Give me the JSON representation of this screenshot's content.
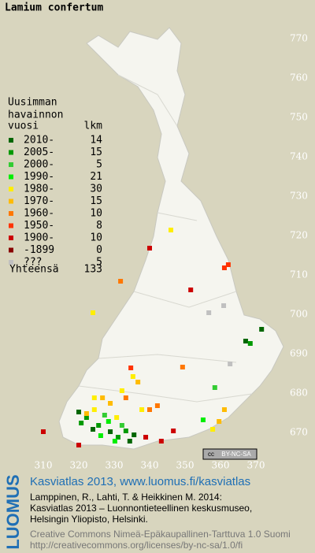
{
  "chart_data": {
    "type": "grid-map",
    "title": "Lamium confertum",
    "legend_heading": [
      "Uusimman",
      "havainnon",
      "vuosi"
    ],
    "count_heading": "lkm",
    "total_label": "Yhteensä",
    "total": 133,
    "xlim": [
      300,
      380
    ],
    "ylim": [
      660,
      780
    ],
    "xticks": [
      310,
      320,
      330,
      340,
      350,
      360,
      370
    ],
    "yticks": [
      670,
      680,
      690,
      700,
      710,
      720,
      730,
      740,
      750,
      760,
      770
    ],
    "series": [
      {
        "name": "2010-",
        "count": 14,
        "color": "#006600",
        "x": [
          371.6,
          320,
          324,
          328.9,
          334.4,
          335.6,
          367.1
        ],
        "y": [
          696.2,
          675.2,
          670.8,
          670.2,
          667.8,
          669.4,
          693.2
        ]
      },
      {
        "name": "2005-",
        "count": 15,
        "color": "#009900",
        "x": [
          368.4,
          322.2,
          325.6,
          331.1,
          320.7,
          333.3
        ],
        "y": [
          692.6,
          673.8,
          671.8,
          668.8,
          672.4,
          670.4
        ]
      },
      {
        "name": "2000-",
        "count": 5,
        "color": "#33cc33",
        "x": [
          358.4,
          327.3,
          332.2
        ],
        "y": [
          681.4,
          674.4,
          671.8
        ]
      },
      {
        "name": "1990-",
        "count": 21,
        "color": "#00ee00",
        "x": [
          330.2,
          326.2,
          328.4,
          355.1
        ],
        "y": [
          667.8,
          669.2,
          672.8,
          673.2
        ]
      },
      {
        "name": "1980-",
        "count": 30,
        "color": "#ffee00",
        "x": [
          346,
          324,
          335.3,
          332.2,
          324.4,
          330.7,
          337.8,
          324.4,
          357.8
        ],
        "y": [
          721.4,
          700.4,
          684.2,
          680.6,
          675.8,
          673.8,
          675.8,
          678.8,
          670.8
        ]
      },
      {
        "name": "1970-",
        "count": 15,
        "color": "#ffbb00",
        "x": [
          336.7,
          322.2,
          326.7,
          328.9,
          361.1,
          359.6
        ],
        "y": [
          682.8,
          674.8,
          678.8,
          677.4,
          675.8,
          672.8
        ]
      },
      {
        "name": "1960-",
        "count": 10,
        "color": "#ff7700",
        "x": [
          331.8,
          349.3,
          333.3,
          340,
          342.2
        ],
        "y": [
          708.4,
          686.6,
          678.8,
          675.8,
          676.8
        ]
      },
      {
        "name": "1950-",
        "count": 8,
        "color": "#ff3300",
        "x": [
          361.1,
          362.2,
          334.7
        ],
        "y": [
          711.8,
          712.6,
          686.4
        ]
      },
      {
        "name": "1900-",
        "count": 10,
        "color": "#cc0000",
        "x": [
          351.6,
          310,
          320,
          338.9,
          343.3,
          346.7,
          340
        ],
        "y": [
          706.2,
          670.2,
          666.8,
          668.8,
          667.8,
          670.4,
          716.8
        ]
      },
      {
        "name": "-1899",
        "count": 0,
        "color": "#880000",
        "x": [],
        "y": []
      },
      {
        "name": "???",
        "count": 5,
        "color": "#c0c0c0",
        "x": [
          356.7,
          360.9,
          362.7
        ],
        "y": [
          700.4,
          702.2,
          687.4
        ]
      }
    ]
  },
  "footer": {
    "brand": "LUOMUS",
    "headline": "Kasviatlas 2013, www.luomus.fi/kasviatlas",
    "citation": [
      "Lamppinen, R., Lahti, T. & Heikkinen M. 2014:",
      "Kasviatlas 2013 – Luonnontieteellinen keskusmuseo,",
      "Helsingin Yliopisto, Helsinki."
    ],
    "license": [
      "Creative Commons Nimeä-Epäkaupallinen-Tarttuva 1.0 Suomi",
      "http://creativecommons.org/licenses/by-nc-sa/1.0/fi"
    ],
    "badge": [
      "cc",
      "BY-NC-SA"
    ]
  }
}
